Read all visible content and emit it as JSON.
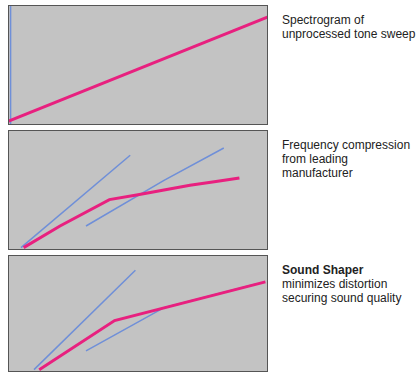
{
  "chart_data": [
    {
      "type": "line",
      "annotation": "Spectrogram of unprocessed tone sweep",
      "xlim": [
        0,
        100
      ],
      "ylim": [
        0,
        100
      ],
      "tick_labels": false,
      "grid": false,
      "series": [
        {
          "color": "#e8207f",
          "x": [
            0,
            100
          ],
          "values": [
            3,
            90
          ]
        },
        {
          "color": "#6f8fd8",
          "x": [
            1,
            1
          ],
          "values": [
            0,
            100
          ]
        }
      ]
    },
    {
      "type": "line",
      "annotation": "Frequency compression from leading manufacturer",
      "xlim": [
        0,
        100
      ],
      "ylim": [
        0,
        100
      ],
      "tick_labels": false,
      "grid": false,
      "series": [
        {
          "color": "#e8207f",
          "x": [
            6,
            20,
            39,
            50,
            60,
            70,
            80,
            89
          ],
          "values": [
            2,
            20,
            42,
            46,
            50,
            54,
            57,
            60
          ]
        },
        {
          "color": "#6f8fd8",
          "x": [
            5,
            47
          ],
          "values": [
            2,
            79
          ]
        },
        {
          "color": "#6f8fd8",
          "x": [
            30,
            60,
            83
          ],
          "values": [
            20,
            58,
            85
          ]
        }
      ]
    },
    {
      "type": "line",
      "title": "Sound Shaper",
      "annotation": "minimizes distortion securing sound quality",
      "xlim": [
        0,
        100
      ],
      "ylim": [
        0,
        100
      ],
      "tick_labels": false,
      "grid": false,
      "series": [
        {
          "color": "#e8207f",
          "x": [
            12,
            41,
            99
          ],
          "values": [
            2,
            44,
            77
          ]
        },
        {
          "color": "#6f8fd8",
          "x": [
            10,
            49
          ],
          "values": [
            2,
            87
          ]
        },
        {
          "color": "#6f8fd8",
          "x": [
            30,
            60,
            95
          ],
          "values": [
            18,
            55,
            75
          ]
        }
      ]
    }
  ]
}
